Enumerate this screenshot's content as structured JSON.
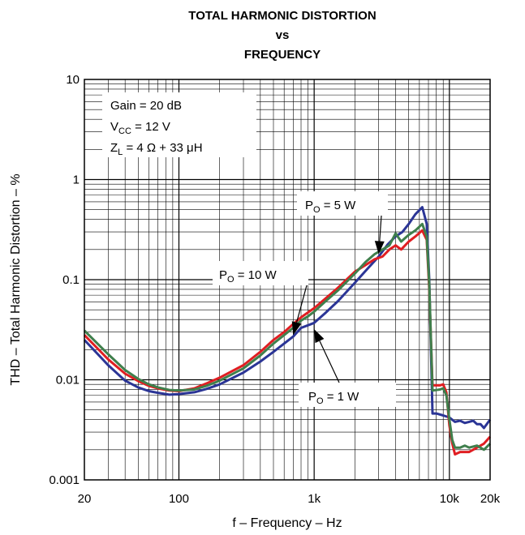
{
  "chart_data": {
    "type": "line",
    "title": [
      "TOTAL HARMONIC DISTORTION",
      "vs",
      "FREQUENCY"
    ],
    "xlabel": "f – Frequency – Hz",
    "ylabel": "THD – Total Harmonic Distortion – %",
    "xscale": "log",
    "yscale": "log",
    "xlim": [
      20,
      20000
    ],
    "ylim": [
      0.001,
      10
    ],
    "grid": true,
    "xticks": [
      {
        "value": 20,
        "label": "20"
      },
      {
        "value": 100,
        "label": "100"
      },
      {
        "value": 1000,
        "label": "1k"
      },
      {
        "value": 10000,
        "label": "10k"
      },
      {
        "value": 20000,
        "label": "20k"
      }
    ],
    "yticks": [
      {
        "value": 10,
        "label": "10"
      },
      {
        "value": 1,
        "label": "1"
      },
      {
        "value": 0.1,
        "label": "0.1"
      },
      {
        "value": 0.01,
        "label": "0.01"
      },
      {
        "value": 0.001,
        "label": "0.001"
      }
    ],
    "conditions": {
      "gain": "Gain = 20 dB",
      "vcc_main": "V",
      "vcc_sub": "CC",
      "vcc_rest": " = 12 V",
      "zl_main": "Z",
      "zl_sub": "L",
      "zl_rest": " = 4 Ω + 33 μH"
    },
    "series": [
      {
        "name": "1 W",
        "label_main": "P",
        "label_sub": "O",
        "label_rest": " = 1 W",
        "color": "#2b3596",
        "points": [
          [
            20,
            0.025
          ],
          [
            30,
            0.014
          ],
          [
            40,
            0.0098
          ],
          [
            50,
            0.0084
          ],
          [
            60,
            0.0077
          ],
          [
            70,
            0.0074
          ],
          [
            85,
            0.0071
          ],
          [
            100,
            0.0072
          ],
          [
            130,
            0.0075
          ],
          [
            160,
            0.0081
          ],
          [
            200,
            0.009
          ],
          [
            300,
            0.0118
          ],
          [
            400,
            0.0152
          ],
          [
            500,
            0.019
          ],
          [
            600,
            0.023
          ],
          [
            700,
            0.027
          ],
          [
            800,
            0.033
          ],
          [
            900,
            0.035
          ],
          [
            1000,
            0.037
          ],
          [
            1200,
            0.046
          ],
          [
            1500,
            0.061
          ],
          [
            2000,
            0.093
          ],
          [
            2500,
            0.13
          ],
          [
            3000,
            0.17
          ],
          [
            3500,
            0.225
          ],
          [
            4000,
            0.27
          ],
          [
            4500,
            0.3
          ],
          [
            5000,
            0.36
          ],
          [
            5600,
            0.45
          ],
          [
            6300,
            0.53
          ],
          [
            6800,
            0.36
          ],
          [
            7100,
            0.1
          ],
          [
            7500,
            0.0046
          ],
          [
            8000,
            0.0046
          ],
          [
            9000,
            0.0044
          ],
          [
            10000,
            0.0042
          ],
          [
            11000,
            0.0038
          ],
          [
            12000,
            0.0039
          ],
          [
            13000,
            0.0037
          ],
          [
            14000,
            0.0038
          ],
          [
            15000,
            0.0039
          ],
          [
            16000,
            0.0036
          ],
          [
            17000,
            0.0036
          ],
          [
            18000,
            0.0033
          ],
          [
            20000,
            0.004
          ]
        ]
      },
      {
        "name": "5 W",
        "label_main": "P",
        "label_sub": "O",
        "label_rest": " = 5 W",
        "color": "#e01e22",
        "points": [
          [
            20,
            0.028
          ],
          [
            30,
            0.016
          ],
          [
            40,
            0.0115
          ],
          [
            50,
            0.0097
          ],
          [
            60,
            0.0087
          ],
          [
            70,
            0.0082
          ],
          [
            85,
            0.0078
          ],
          [
            100,
            0.0077
          ],
          [
            130,
            0.0082
          ],
          [
            160,
            0.0092
          ],
          [
            200,
            0.0105
          ],
          [
            300,
            0.014
          ],
          [
            400,
            0.019
          ],
          [
            500,
            0.025
          ],
          [
            600,
            0.03
          ],
          [
            700,
            0.036
          ],
          [
            800,
            0.042
          ],
          [
            900,
            0.047
          ],
          [
            1000,
            0.052
          ],
          [
            1200,
            0.064
          ],
          [
            1500,
            0.083
          ],
          [
            2000,
            0.12
          ],
          [
            2400,
            0.14
          ],
          [
            2800,
            0.16
          ],
          [
            3200,
            0.17
          ],
          [
            3600,
            0.2
          ],
          [
            4000,
            0.22
          ],
          [
            4400,
            0.2
          ],
          [
            5000,
            0.24
          ],
          [
            5600,
            0.27
          ],
          [
            6300,
            0.31
          ],
          [
            6800,
            0.25
          ],
          [
            7100,
            0.08
          ],
          [
            7500,
            0.0088
          ],
          [
            8500,
            0.0088
          ],
          [
            9000,
            0.009
          ],
          [
            9500,
            0.0075
          ],
          [
            10000,
            0.0035
          ],
          [
            10500,
            0.0023
          ],
          [
            11000,
            0.0018
          ],
          [
            12000,
            0.0019
          ],
          [
            14000,
            0.0019
          ],
          [
            16000,
            0.0021
          ],
          [
            18000,
            0.0023
          ],
          [
            20000,
            0.0027
          ]
        ]
      },
      {
        "name": "10 W",
        "label_main": "P",
        "label_sub": "O",
        "label_rest": " = 10 W",
        "color": "#3f7f4c",
        "points": [
          [
            20,
            0.031
          ],
          [
            30,
            0.018
          ],
          [
            40,
            0.0125
          ],
          [
            50,
            0.0102
          ],
          [
            60,
            0.009
          ],
          [
            70,
            0.0084
          ],
          [
            85,
            0.0079
          ],
          [
            100,
            0.0078
          ],
          [
            130,
            0.008
          ],
          [
            160,
            0.0087
          ],
          [
            200,
            0.0098
          ],
          [
            300,
            0.013
          ],
          [
            400,
            0.0175
          ],
          [
            500,
            0.023
          ],
          [
            600,
            0.028
          ],
          [
            700,
            0.033
          ],
          [
            800,
            0.039
          ],
          [
            900,
            0.043
          ],
          [
            1000,
            0.048
          ],
          [
            1200,
            0.06
          ],
          [
            1500,
            0.078
          ],
          [
            2000,
            0.115
          ],
          [
            2400,
            0.15
          ],
          [
            2800,
            0.18
          ],
          [
            3200,
            0.2
          ],
          [
            3600,
            0.22
          ],
          [
            4000,
            0.29
          ],
          [
            4400,
            0.24
          ],
          [
            5000,
            0.28
          ],
          [
            5600,
            0.31
          ],
          [
            6300,
            0.36
          ],
          [
            6800,
            0.27
          ],
          [
            7100,
            0.09
          ],
          [
            7500,
            0.0078
          ],
          [
            8500,
            0.008
          ],
          [
            9000,
            0.0082
          ],
          [
            9500,
            0.007
          ],
          [
            10000,
            0.004
          ],
          [
            10500,
            0.0025
          ],
          [
            11000,
            0.0021
          ],
          [
            12000,
            0.0021
          ],
          [
            13000,
            0.0022
          ],
          [
            14000,
            0.0021
          ],
          [
            16000,
            0.0022
          ],
          [
            18000,
            0.002
          ],
          [
            20000,
            0.0023
          ]
        ]
      }
    ],
    "callouts": [
      {
        "series": "5 W",
        "arrow_to": [
          3000,
          0.18
        ]
      },
      {
        "series": "10 W",
        "arrow_to": [
          700,
          0.028
        ]
      },
      {
        "series": "1 W",
        "arrow_to": [
          1000,
          0.032
        ]
      }
    ]
  }
}
